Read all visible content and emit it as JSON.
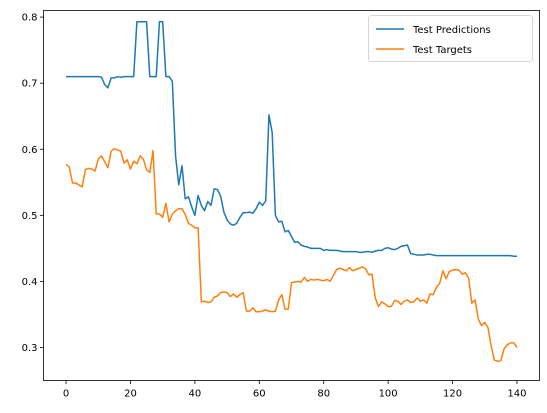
{
  "chart_data": {
    "type": "line",
    "title": "",
    "xlabel": "",
    "ylabel": "",
    "xlim": [
      -7,
      147
    ],
    "ylim": [
      0.25,
      0.81
    ],
    "xticks": [
      0,
      20,
      40,
      60,
      80,
      100,
      120,
      140
    ],
    "yticks": [
      0.3,
      0.4,
      0.5,
      0.6,
      0.7,
      0.8
    ],
    "xtick_labels": [
      "0",
      "20",
      "40",
      "60",
      "80",
      "100",
      "120",
      "140"
    ],
    "ytick_labels": [
      "0.3",
      "0.4",
      "0.5",
      "0.6",
      "0.7",
      "0.8"
    ],
    "grid": false,
    "legend_position": "top-right",
    "series": [
      {
        "name": "Test Predictions",
        "color": "#1f77b4",
        "x": [
          0,
          1,
          2,
          3,
          4,
          5,
          6,
          7,
          8,
          9,
          10,
          11,
          12,
          13,
          14,
          15,
          16,
          17,
          18,
          19,
          20,
          21,
          22,
          23,
          24,
          25,
          26,
          27,
          28,
          29,
          30,
          31,
          32,
          33,
          34,
          35,
          36,
          37,
          38,
          39,
          40,
          41,
          42,
          43,
          44,
          45,
          46,
          47,
          48,
          49,
          50,
          51,
          52,
          53,
          54,
          55,
          56,
          57,
          58,
          59,
          60,
          61,
          62,
          63,
          64,
          65,
          66,
          67,
          68,
          69,
          70,
          71,
          72,
          73,
          74,
          75,
          76,
          77,
          78,
          79,
          80,
          81,
          82,
          83,
          84,
          85,
          86,
          87,
          88,
          89,
          90,
          91,
          92,
          93,
          94,
          95,
          96,
          97,
          98,
          99,
          100,
          101,
          102,
          103,
          104,
          105,
          106,
          107,
          108,
          109,
          110,
          111,
          112,
          113,
          114,
          115,
          116,
          117,
          118,
          119,
          120,
          121,
          122,
          123,
          124,
          125,
          126,
          127,
          128,
          129,
          130,
          131,
          132,
          133,
          134,
          135,
          136,
          137,
          138,
          139,
          140
        ],
        "y": [
          0.71,
          0.71,
          0.71,
          0.71,
          0.71,
          0.71,
          0.71,
          0.71,
          0.71,
          0.71,
          0.71,
          0.709,
          0.698,
          0.693,
          0.708,
          0.708,
          0.71,
          0.709,
          0.71,
          0.71,
          0.71,
          0.71,
          0.793,
          0.793,
          0.793,
          0.793,
          0.71,
          0.71,
          0.71,
          0.793,
          0.793,
          0.71,
          0.71,
          0.703,
          0.59,
          0.546,
          0.575,
          0.525,
          0.528,
          0.513,
          0.5,
          0.53,
          0.515,
          0.507,
          0.521,
          0.515,
          0.54,
          0.539,
          0.529,
          0.505,
          0.493,
          0.487,
          0.485,
          0.488,
          0.497,
          0.504,
          0.504,
          0.505,
          0.503,
          0.51,
          0.52,
          0.515,
          0.522,
          0.652,
          0.625,
          0.5,
          0.49,
          0.491,
          0.475,
          0.477,
          0.468,
          0.459,
          0.46,
          0.455,
          0.453,
          0.452,
          0.45,
          0.45,
          0.45,
          0.45,
          0.447,
          0.448,
          0.447,
          0.447,
          0.447,
          0.446,
          0.445,
          0.445,
          0.445,
          0.445,
          0.445,
          0.444,
          0.444,
          0.445,
          0.445,
          0.444,
          0.446,
          0.447,
          0.447,
          0.45,
          0.451,
          0.449,
          0.448,
          0.45,
          0.453,
          0.454,
          0.455,
          0.442,
          0.441,
          0.44,
          0.44,
          0.44,
          0.441,
          0.441,
          0.44,
          0.439,
          0.439,
          0.439,
          0.439,
          0.439,
          0.439,
          0.439,
          0.439,
          0.439,
          0.439,
          0.439,
          0.439,
          0.439,
          0.439,
          0.439,
          0.439,
          0.439,
          0.439,
          0.439,
          0.439,
          0.439,
          0.439,
          0.439,
          0.439,
          0.438,
          0.438
        ]
      },
      {
        "name": "Test Targets",
        "color": "#ff7f0e",
        "x": [
          0,
          1,
          2,
          3,
          4,
          5,
          6,
          7,
          8,
          9,
          10,
          11,
          12,
          13,
          14,
          15,
          16,
          17,
          18,
          19,
          20,
          21,
          22,
          23,
          24,
          25,
          26,
          27,
          28,
          29,
          30,
          31,
          32,
          33,
          34,
          35,
          36,
          37,
          38,
          39,
          40,
          41,
          42,
          43,
          44,
          45,
          46,
          47,
          48,
          49,
          50,
          51,
          52,
          53,
          54,
          55,
          56,
          57,
          58,
          59,
          60,
          61,
          62,
          63,
          64,
          65,
          66,
          67,
          68,
          69,
          70,
          71,
          72,
          73,
          74,
          75,
          76,
          77,
          78,
          79,
          80,
          81,
          82,
          83,
          84,
          85,
          86,
          87,
          88,
          89,
          90,
          91,
          92,
          93,
          94,
          95,
          96,
          97,
          98,
          99,
          100,
          101,
          102,
          103,
          104,
          105,
          106,
          107,
          108,
          109,
          110,
          111,
          112,
          113,
          114,
          115,
          116,
          117,
          118,
          119,
          120,
          121,
          122,
          123,
          124,
          125,
          126,
          127,
          128,
          129,
          130,
          131,
          132,
          133,
          134,
          135,
          136,
          137,
          138,
          139,
          140
        ],
        "y": [
          0.577,
          0.573,
          0.549,
          0.549,
          0.546,
          0.543,
          0.569,
          0.571,
          0.57,
          0.567,
          0.585,
          0.59,
          0.581,
          0.572,
          0.597,
          0.601,
          0.599,
          0.597,
          0.579,
          0.584,
          0.57,
          0.582,
          0.578,
          0.59,
          0.585,
          0.569,
          0.565,
          0.598,
          0.502,
          0.502,
          0.497,
          0.518,
          0.49,
          0.502,
          0.507,
          0.51,
          0.51,
          0.501,
          0.488,
          0.485,
          0.481,
          0.481,
          0.369,
          0.37,
          0.368,
          0.369,
          0.376,
          0.378,
          0.383,
          0.384,
          0.383,
          0.377,
          0.381,
          0.376,
          0.38,
          0.383,
          0.355,
          0.355,
          0.36,
          0.354,
          0.354,
          0.355,
          0.357,
          0.355,
          0.354,
          0.355,
          0.372,
          0.38,
          0.358,
          0.358,
          0.398,
          0.399,
          0.4,
          0.399,
          0.406,
          0.4,
          0.403,
          0.402,
          0.403,
          0.402,
          0.401,
          0.403,
          0.4,
          0.409,
          0.418,
          0.42,
          0.418,
          0.416,
          0.421,
          0.416,
          0.418,
          0.42,
          0.422,
          0.419,
          0.41,
          0.411,
          0.375,
          0.362,
          0.369,
          0.366,
          0.362,
          0.362,
          0.371,
          0.37,
          0.365,
          0.37,
          0.372,
          0.368,
          0.369,
          0.375,
          0.37,
          0.372,
          0.367,
          0.381,
          0.38,
          0.391,
          0.397,
          0.416,
          0.404,
          0.415,
          0.417,
          0.418,
          0.417,
          0.411,
          0.413,
          0.405,
          0.367,
          0.372,
          0.343,
          0.333,
          0.338,
          0.33,
          0.302,
          0.281,
          0.279,
          0.28,
          0.298,
          0.304,
          0.307,
          0.307,
          0.3
        ]
      }
    ]
  }
}
